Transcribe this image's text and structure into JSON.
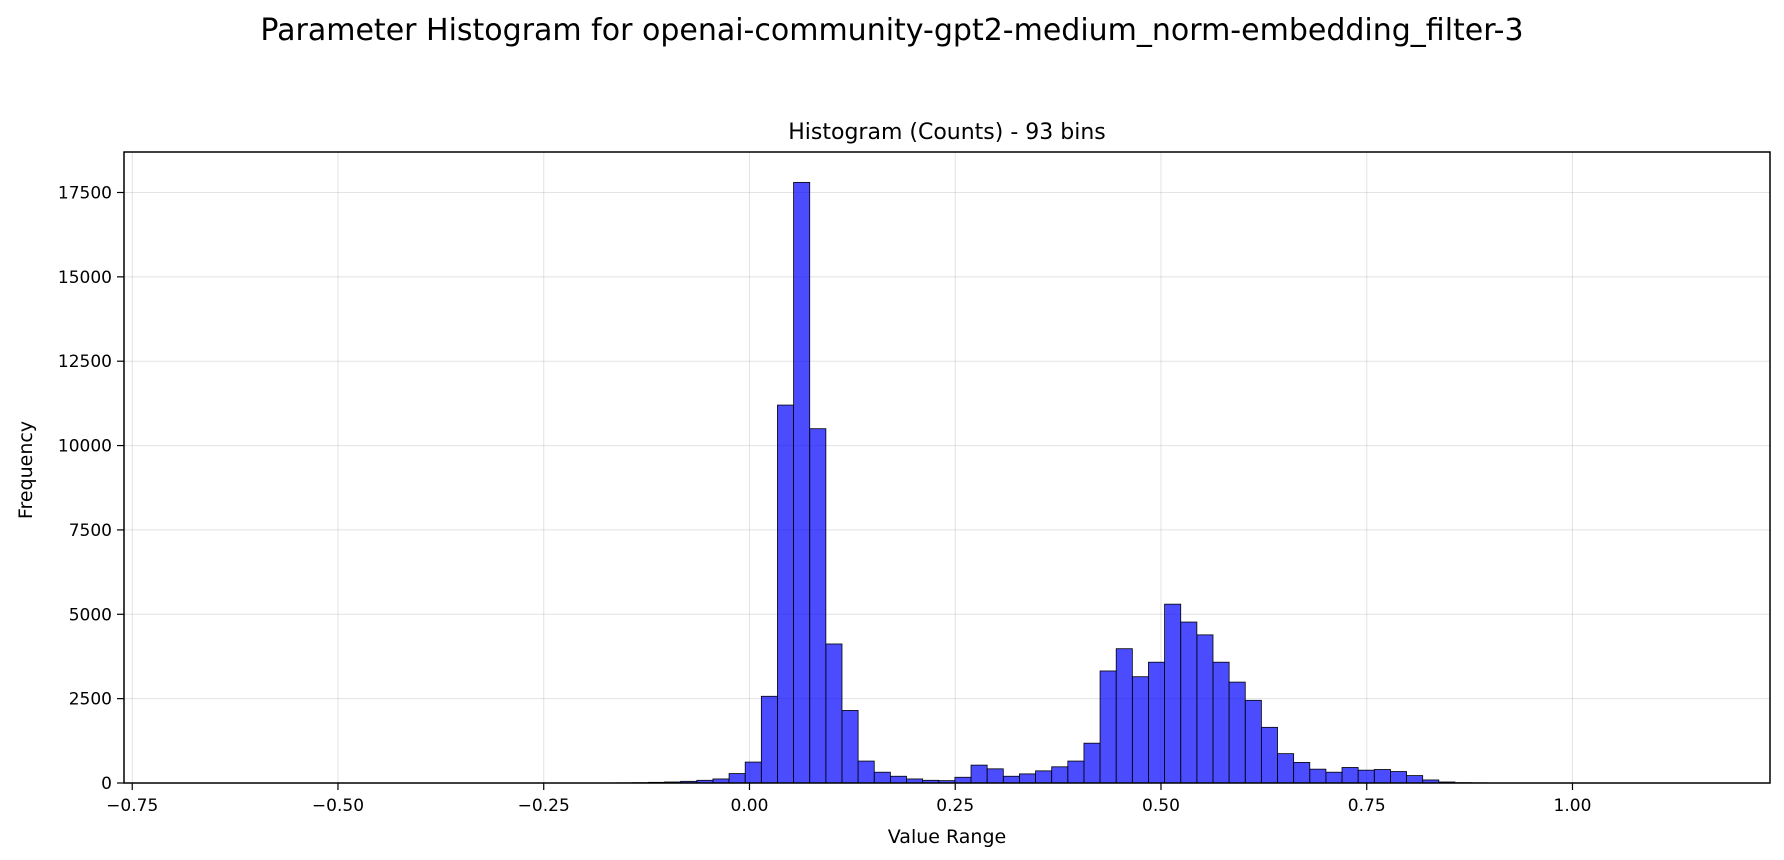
{
  "figure": {
    "suptitle": "Parameter Histogram for openai-community-gpt2-medium_norm-embedding_filter-3"
  },
  "chart_data": {
    "type": "bar",
    "title": "Histogram (Counts) - 93 bins",
    "xlabel": "Value Range",
    "ylabel": "Frequency",
    "xlim": [
      -0.76,
      1.24
    ],
    "ylim": [
      0,
      18700
    ],
    "xticks": [
      "−0.75",
      "−0.50",
      "−0.25",
      "0.00",
      "0.25",
      "0.50",
      "0.75",
      "1.00"
    ],
    "xtick_values": [
      -0.75,
      -0.5,
      -0.25,
      0.0,
      0.25,
      0.5,
      0.75,
      1.0
    ],
    "yticks": [
      "0",
      "2500",
      "5000",
      "7500",
      "10000",
      "12500",
      "15000",
      "17500"
    ],
    "ytick_values": [
      0,
      2500,
      5000,
      7500,
      10000,
      12500,
      15000,
      17500
    ],
    "grid": true,
    "bar_color": "#0000ff",
    "bar_alpha": 0.7,
    "bar_edge_color": "#000000",
    "bins": {
      "x_start": -0.75,
      "bin_width": 0.0196,
      "counts": [
        0,
        0,
        0,
        0,
        0,
        0,
        0,
        0,
        0,
        0,
        0,
        0,
        0,
        0,
        0,
        0,
        0,
        0,
        0,
        0,
        0,
        0,
        0,
        0,
        0,
        0,
        0,
        0,
        0,
        0,
        5,
        10,
        20,
        30,
        50,
        80,
        120,
        280,
        620,
        2570,
        11200,
        17800,
        10500,
        4120,
        2150,
        650,
        320,
        200,
        120,
        80,
        70,
        170,
        530,
        420,
        200,
        270,
        360,
        480,
        650,
        1180,
        3320,
        3980,
        3150,
        3580,
        5300,
        4770,
        4390,
        3580,
        2990,
        2450,
        1650,
        870,
        610,
        410,
        320,
        460,
        380,
        400,
        340,
        220,
        90,
        30,
        10,
        5,
        0,
        0,
        0,
        0,
        0,
        0,
        0,
        0,
        0
      ]
    }
  }
}
